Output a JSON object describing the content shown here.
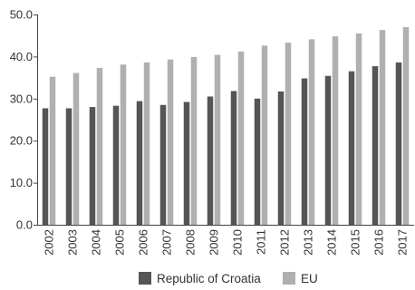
{
  "chart_data": {
    "type": "bar",
    "categories": [
      "2002",
      "2003",
      "2004",
      "2005",
      "2006",
      "2007",
      "2008",
      "2009",
      "2010",
      "2011",
      "2012",
      "2013",
      "2014",
      "2015",
      "2016",
      "2017"
    ],
    "series": [
      {
        "name": "Republic of Croatia",
        "color": "#555555",
        "values": [
          27.7,
          27.7,
          28.0,
          28.3,
          29.4,
          28.5,
          29.2,
          30.5,
          31.8,
          30.0,
          31.7,
          34.8,
          35.4,
          36.5,
          37.7,
          38.6
        ]
      },
      {
        "name": "EU",
        "color": "#b0b0b0",
        "values": [
          35.2,
          36.1,
          37.3,
          38.1,
          38.6,
          39.3,
          39.9,
          40.4,
          41.2,
          42.6,
          43.3,
          44.1,
          44.8,
          45.5,
          46.3,
          47.0
        ]
      }
    ],
    "ylim": [
      0,
      50
    ],
    "yticks": [
      "0.0",
      "10.0",
      "20.0",
      "30.0",
      "40.0",
      "50.0"
    ],
    "ytick_values": [
      0,
      10,
      20,
      30,
      40,
      50
    ],
    "grid": false,
    "legend": "bottom-center"
  }
}
